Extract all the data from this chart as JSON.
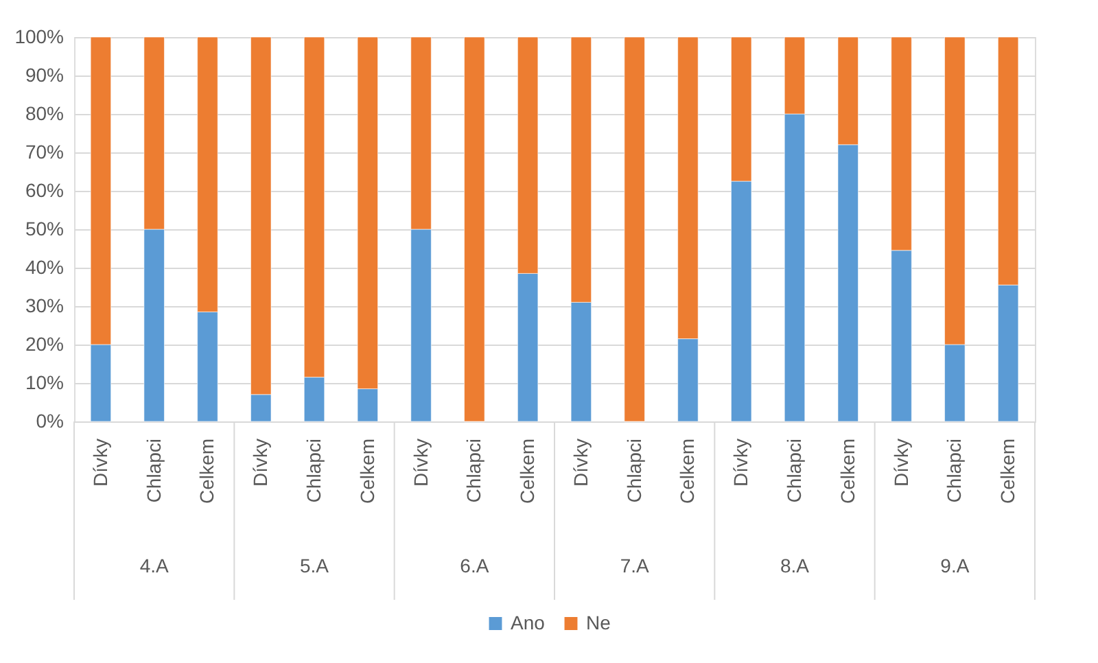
{
  "chart_data": {
    "type": "bar",
    "stacked": true,
    "categories": [
      "Dívky",
      "Chlapci",
      "Celkem",
      "Dívky",
      "Chlapci",
      "Celkem",
      "Dívky",
      "Chlapci",
      "Celkem",
      "Dívky",
      "Chlapci",
      "Celkem",
      "Dívky",
      "Chlapci",
      "Celkem",
      "Dívky",
      "Chlapci",
      "Celkem"
    ],
    "annotations": [
      "4.A",
      "5.A",
      "6.A",
      "7.A",
      "8.A",
      "9.A"
    ],
    "series": [
      {
        "name": "Ano",
        "color": "#5b9bd5",
        "values": [
          20,
          50,
          28.5,
          7,
          11.5,
          8.5,
          50,
          0,
          38.5,
          31,
          0,
          21.5,
          62.5,
          80,
          72,
          44.5,
          20,
          35.5
        ]
      },
      {
        "name": "Ne",
        "color": "#ed7d31",
        "values": [
          80,
          50,
          71.5,
          93,
          88.5,
          91.5,
          50,
          100,
          61.5,
          69,
          100,
          78.5,
          37.5,
          20,
          28,
          55.5,
          80,
          64.5
        ]
      }
    ],
    "ylim": [
      0,
      100
    ],
    "yticks": [
      {
        "value": 0,
        "label": "0%"
      },
      {
        "value": 10,
        "label": "10%"
      },
      {
        "value": 20,
        "label": "20%"
      },
      {
        "value": 30,
        "label": "30%"
      },
      {
        "value": 40,
        "label": "40%"
      },
      {
        "value": 50,
        "label": "50%"
      },
      {
        "value": 60,
        "label": "60%"
      },
      {
        "value": 70,
        "label": "70%"
      },
      {
        "value": 80,
        "label": "80%"
      },
      {
        "value": 90,
        "label": "90%"
      },
      {
        "value": 100,
        "label": "100%"
      }
    ],
    "grid": "y",
    "legend": "bottom"
  }
}
